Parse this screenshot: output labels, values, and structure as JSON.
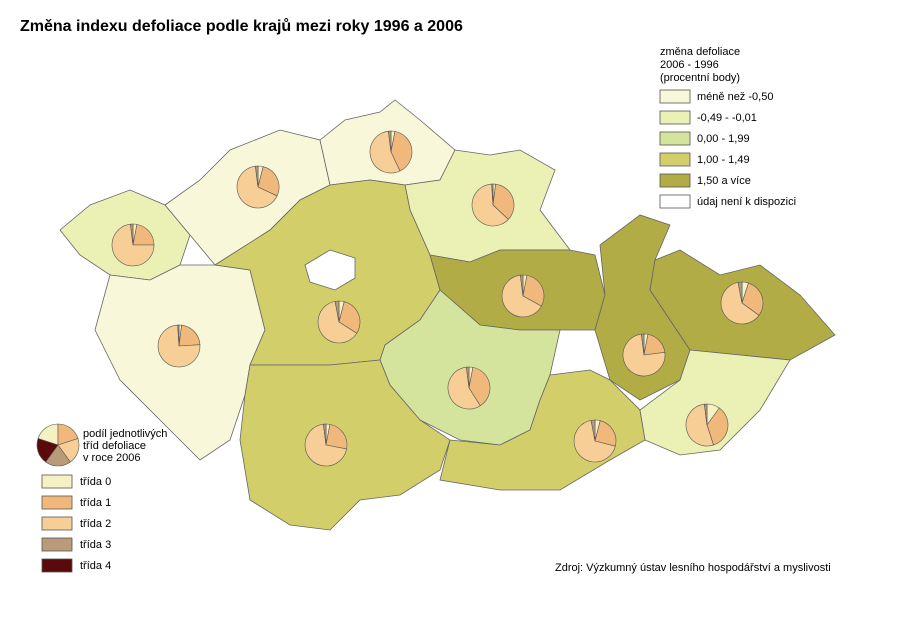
{
  "title": "Změna indexu defoliace podle krajů mezi roky 1996 a 2006",
  "change_legend": {
    "title_lines": [
      "změna defoliace",
      "2006 - 1996",
      "(procentní body)"
    ],
    "classes": [
      {
        "label": "méně než -0,50",
        "color": "#f8f7d9"
      },
      {
        "label": "-0,49 - -0,01",
        "color": "#ebf0b5"
      },
      {
        "label": "0,00 - 1,99",
        "color": "#d5e49c"
      },
      {
        "label": "1,00 - 1,49",
        "color": "#d2cf6a"
      },
      {
        "label": "1,50 a více",
        "color": "#b1ac45"
      },
      {
        "label": "údaj není k dispozici",
        "color": "#ffffff"
      }
    ]
  },
  "pie_legend": {
    "title_lines": [
      "podíl jednotlivých",
      "tříd defoliace",
      "v roce 2006"
    ],
    "classes": [
      {
        "label": "třída 0",
        "color": "#f6f1c2"
      },
      {
        "label": "třída 1",
        "color": "#f0b97b"
      },
      {
        "label": "třída 2",
        "color": "#f6ce96"
      },
      {
        "label": "třída 3",
        "color": "#b99b79"
      },
      {
        "label": "třída 4",
        "color": "#5a0a0a"
      }
    ]
  },
  "source": "Zdroj: Výzkumný ústav lesního hospodářství a myslivosti",
  "regions": [
    {
      "class": 1,
      "pie": [
        3,
        22,
        73,
        2,
        0
      ]
    },
    {
      "class": 0,
      "pie": [
        4,
        28,
        66,
        2,
        0
      ]
    },
    {
      "class": 0,
      "pie": [
        3,
        40,
        55,
        2,
        0
      ]
    },
    {
      "class": 1,
      "pie": [
        2,
        35,
        62,
        1,
        0
      ]
    },
    {
      "class": 0,
      "pie": [
        2,
        22,
        75,
        1,
        0
      ]
    },
    {
      "class": 3,
      "pie": [
        4,
        30,
        63,
        3,
        0
      ]
    },
    {
      "class": 5,
      "pie": null
    },
    {
      "class": 4,
      "pie": [
        3,
        30,
        65,
        2,
        0
      ]
    },
    {
      "class": 2,
      "pie": [
        3,
        38,
        57,
        2,
        0
      ]
    },
    {
      "class": 3,
      "pie": [
        3,
        25,
        70,
        2,
        0
      ]
    },
    {
      "class": 3,
      "pie": [
        4,
        25,
        68,
        3,
        0
      ]
    },
    {
      "class": 4,
      "pie": [
        3,
        20,
        75,
        2,
        0
      ]
    },
    {
      "class": 4,
      "pie": [
        5,
        30,
        62,
        3,
        0
      ]
    },
    {
      "class": 1,
      "pie": [
        10,
        35,
        53,
        2,
        0
      ]
    }
  ]
}
